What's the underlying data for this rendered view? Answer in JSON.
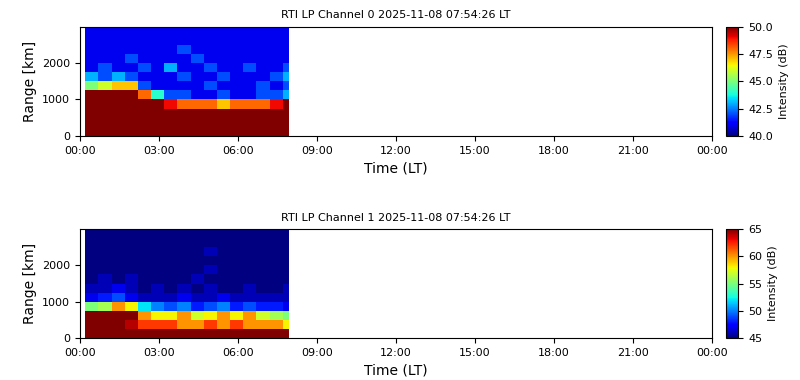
{
  "chart_data": [
    {
      "type": "heatmap",
      "title": "RTI LP Channel 0 2025-11-08 07:54:26 LT",
      "x_label": "Time (LT)",
      "y_label": "Range [km]",
      "xlim": [
        0,
        24
      ],
      "xticks": [
        {
          "value": 0,
          "label": "00:00"
        },
        {
          "value": 3,
          "label": "03:00"
        },
        {
          "value": 6,
          "label": "06:00"
        },
        {
          "value": 9,
          "label": "09:00"
        },
        {
          "value": 12,
          "label": "12:00"
        },
        {
          "value": 15,
          "label": "15:00"
        },
        {
          "value": 18,
          "label": "18:00"
        },
        {
          "value": 21,
          "label": "21:00"
        },
        {
          "value": 24,
          "label": "00:00"
        }
      ],
      "ylim": [
        0,
        3000
      ],
      "yticks": [
        0,
        1000,
        2000
      ],
      "xedges": [
        0.2,
        0.7,
        1.2,
        1.7,
        2.2,
        2.7,
        3.2,
        3.7,
        4.2,
        4.7,
        5.2,
        5.7,
        6.2,
        6.7,
        7.2,
        7.7,
        7.94
      ],
      "yedges": [
        0,
        250,
        500,
        750,
        1000,
        1250,
        1500,
        1750,
        2000,
        2250,
        2500,
        2750,
        3000
      ],
      "cells": [
        [
          52,
          52,
          52,
          52,
          52,
          52,
          52,
          52,
          52,
          52,
          52,
          52,
          52,
          52,
          52,
          52
        ],
        [
          52,
          52,
          52,
          52,
          52,
          52,
          52,
          52,
          52,
          52,
          52,
          52,
          52,
          52,
          52,
          52
        ],
        [
          52,
          52,
          52,
          52,
          52,
          52,
          52,
          52,
          52,
          52,
          52,
          52,
          52,
          52,
          52,
          52
        ],
        [
          52,
          52,
          52,
          52,
          52,
          52,
          49,
          48,
          48,
          48,
          47,
          48,
          48,
          48,
          49,
          50
        ],
        [
          51,
          51,
          52,
          52,
          48,
          44,
          42,
          42,
          41,
          41,
          42,
          41,
          41,
          42,
          42,
          43
        ],
        [
          45,
          46,
          47,
          47,
          42,
          41,
          41,
          41,
          41,
          42,
          41,
          41,
          41,
          42,
          41,
          42
        ],
        [
          43,
          42,
          43,
          42,
          41,
          41,
          41,
          42,
          41,
          41,
          42,
          41,
          41,
          41,
          42,
          43
        ],
        [
          41,
          42,
          41,
          41,
          42,
          41,
          43,
          41,
          41,
          42,
          41,
          41,
          42,
          41,
          41,
          42
        ],
        [
          41,
          41,
          41,
          42,
          41,
          41,
          41,
          41,
          42,
          41,
          41,
          41,
          41,
          41,
          41,
          41
        ],
        [
          41,
          41,
          41,
          41,
          41,
          41,
          41,
          42,
          41,
          41,
          41,
          41,
          41,
          41,
          41,
          41
        ],
        [
          41,
          41,
          41,
          41,
          41,
          41,
          41,
          41,
          41,
          41,
          41,
          41,
          41,
          41,
          41,
          41
        ],
        [
          41,
          41,
          41,
          41,
          41,
          41,
          41,
          41,
          41,
          41,
          41,
          41,
          41,
          41,
          41,
          41
        ]
      ],
      "colorbar_label": "Intensity (dB)",
      "colorbar_range": [
        40,
        50
      ],
      "colorbar_ticks": [
        {
          "value": 40,
          "label": "40.0"
        },
        {
          "value": 42.5,
          "label": "42.5"
        },
        {
          "value": 45,
          "label": "45.0"
        },
        {
          "value": 47.5,
          "label": "47.5"
        },
        {
          "value": 50,
          "label": "50.0"
        }
      ]
    },
    {
      "type": "heatmap",
      "title": "RTI LP Channel 1 2025-11-08 07:54:26 LT",
      "x_label": "Time (LT)",
      "y_label": "Range [km]",
      "xlim": [
        0,
        24
      ],
      "xticks": [
        {
          "value": 0,
          "label": "00:00"
        },
        {
          "value": 3,
          "label": "03:00"
        },
        {
          "value": 6,
          "label": "06:00"
        },
        {
          "value": 9,
          "label": "09:00"
        },
        {
          "value": 12,
          "label": "12:00"
        },
        {
          "value": 15,
          "label": "15:00"
        },
        {
          "value": 18,
          "label": "18:00"
        },
        {
          "value": 21,
          "label": "21:00"
        },
        {
          "value": 24,
          "label": "00:00"
        }
      ],
      "ylim": [
        0,
        3000
      ],
      "yticks": [
        0,
        1000,
        2000
      ],
      "xedges": [
        0.2,
        0.7,
        1.2,
        1.7,
        2.2,
        2.7,
        3.2,
        3.7,
        4.2,
        4.7,
        5.2,
        5.7,
        6.2,
        6.7,
        7.2,
        7.7,
        7.94
      ],
      "yedges": [
        0,
        250,
        500,
        750,
        1000,
        1250,
        1500,
        1750,
        2000,
        2250,
        2500,
        2750,
        3000
      ],
      "cells": [
        [
          67,
          67,
          67,
          67,
          67,
          67,
          67,
          67,
          67,
          67,
          67,
          67,
          67,
          67,
          67,
          67
        ],
        [
          66,
          66,
          66,
          64,
          62,
          62,
          62,
          60,
          60,
          62,
          60,
          62,
          60,
          60,
          60,
          58
        ],
        [
          66,
          66,
          67,
          65,
          60,
          58,
          58,
          60,
          57,
          58,
          60,
          58,
          60,
          57,
          56,
          55
        ],
        [
          55,
          56,
          60,
          58,
          52,
          50,
          49,
          50,
          48,
          49,
          50,
          48,
          49,
          48,
          48,
          47
        ],
        [
          47,
          48,
          49,
          47,
          46,
          46,
          46,
          47,
          46,
          46,
          47,
          46,
          46,
          46,
          46,
          46
        ],
        [
          46,
          46,
          47,
          46,
          45,
          46,
          45,
          46,
          45,
          46,
          45,
          45,
          46,
          45,
          45,
          46
        ],
        [
          45,
          46,
          45,
          46,
          45,
          45,
          45,
          45,
          46,
          45,
          45,
          45,
          45,
          45,
          45,
          45
        ],
        [
          45,
          45,
          45,
          45,
          45,
          45,
          45,
          45,
          45,
          46,
          45,
          45,
          45,
          45,
          45,
          45
        ],
        [
          45,
          45,
          45,
          45,
          45,
          45,
          45,
          45,
          45,
          45,
          45,
          45,
          45,
          45,
          45,
          45
        ],
        [
          45,
          45,
          45,
          45,
          45,
          45,
          45,
          45,
          45,
          46,
          45,
          45,
          45,
          45,
          45,
          45
        ],
        [
          45,
          45,
          45,
          45,
          45,
          45,
          45,
          45,
          45,
          45,
          45,
          45,
          45,
          45,
          45,
          45
        ],
        [
          45,
          45,
          45,
          45,
          45,
          45,
          45,
          45,
          45,
          45,
          45,
          45,
          45,
          45,
          45,
          45
        ]
      ],
      "colorbar_label": "Intensity (dB)",
      "colorbar_range": [
        45,
        65
      ],
      "colorbar_ticks": [
        45,
        50,
        55,
        60,
        65
      ]
    }
  ]
}
